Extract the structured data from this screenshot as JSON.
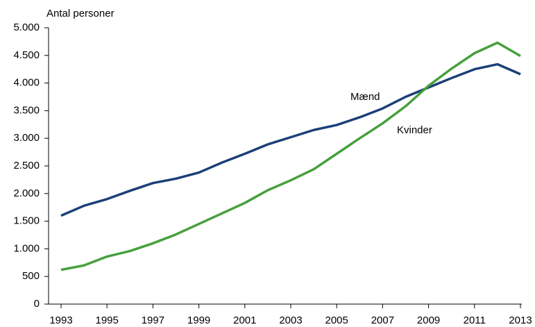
{
  "chart_data": {
    "type": "line",
    "ylabel": "Antal personer",
    "x": [
      1993,
      1994,
      1995,
      1996,
      1997,
      1998,
      1999,
      2000,
      2001,
      2002,
      2003,
      2004,
      2005,
      2006,
      2007,
      2008,
      2009,
      2010,
      2011,
      2012,
      2013
    ],
    "series": [
      {
        "name": "Mænd",
        "color": "#1c3f78",
        "values": [
          1600,
          1780,
          1900,
          2050,
          2190,
          2270,
          2380,
          2560,
          2720,
          2890,
          3020,
          3150,
          3240,
          3380,
          3540,
          3750,
          3920,
          4090,
          4250,
          4340,
          4160
        ]
      },
      {
        "name": "Kvinder",
        "color": "#46a03c",
        "values": [
          620,
          700,
          860,
          960,
          1100,
          1260,
          1450,
          1640,
          1830,
          2060,
          2240,
          2440,
          2720,
          3000,
          3270,
          3580,
          3950,
          4260,
          4540,
          4730,
          4490
        ]
      }
    ],
    "xlim": [
      1993,
      2013
    ],
    "xticks": [
      1993,
      1995,
      1997,
      1999,
      2001,
      2003,
      2005,
      2007,
      2009,
      2011,
      2013
    ],
    "ylim": [
      0,
      5000
    ],
    "yticks": [
      0,
      500,
      {
        "value": 1000,
        "label": "1.000"
      },
      {
        "value": 1500,
        "label": "1.500"
      },
      {
        "value": 2000,
        "label": "2.000"
      },
      {
        "value": 2500,
        "label": "2.500"
      },
      {
        "value": 3000,
        "label": "3.000"
      },
      {
        "value": 3500,
        "label": "3.500"
      },
      {
        "value": 4000,
        "label": "4.000"
      },
      {
        "value": 4500,
        "label": "4.500"
      },
      {
        "value": 5000,
        "label": "5.000"
      }
    ],
    "grid": false
  }
}
